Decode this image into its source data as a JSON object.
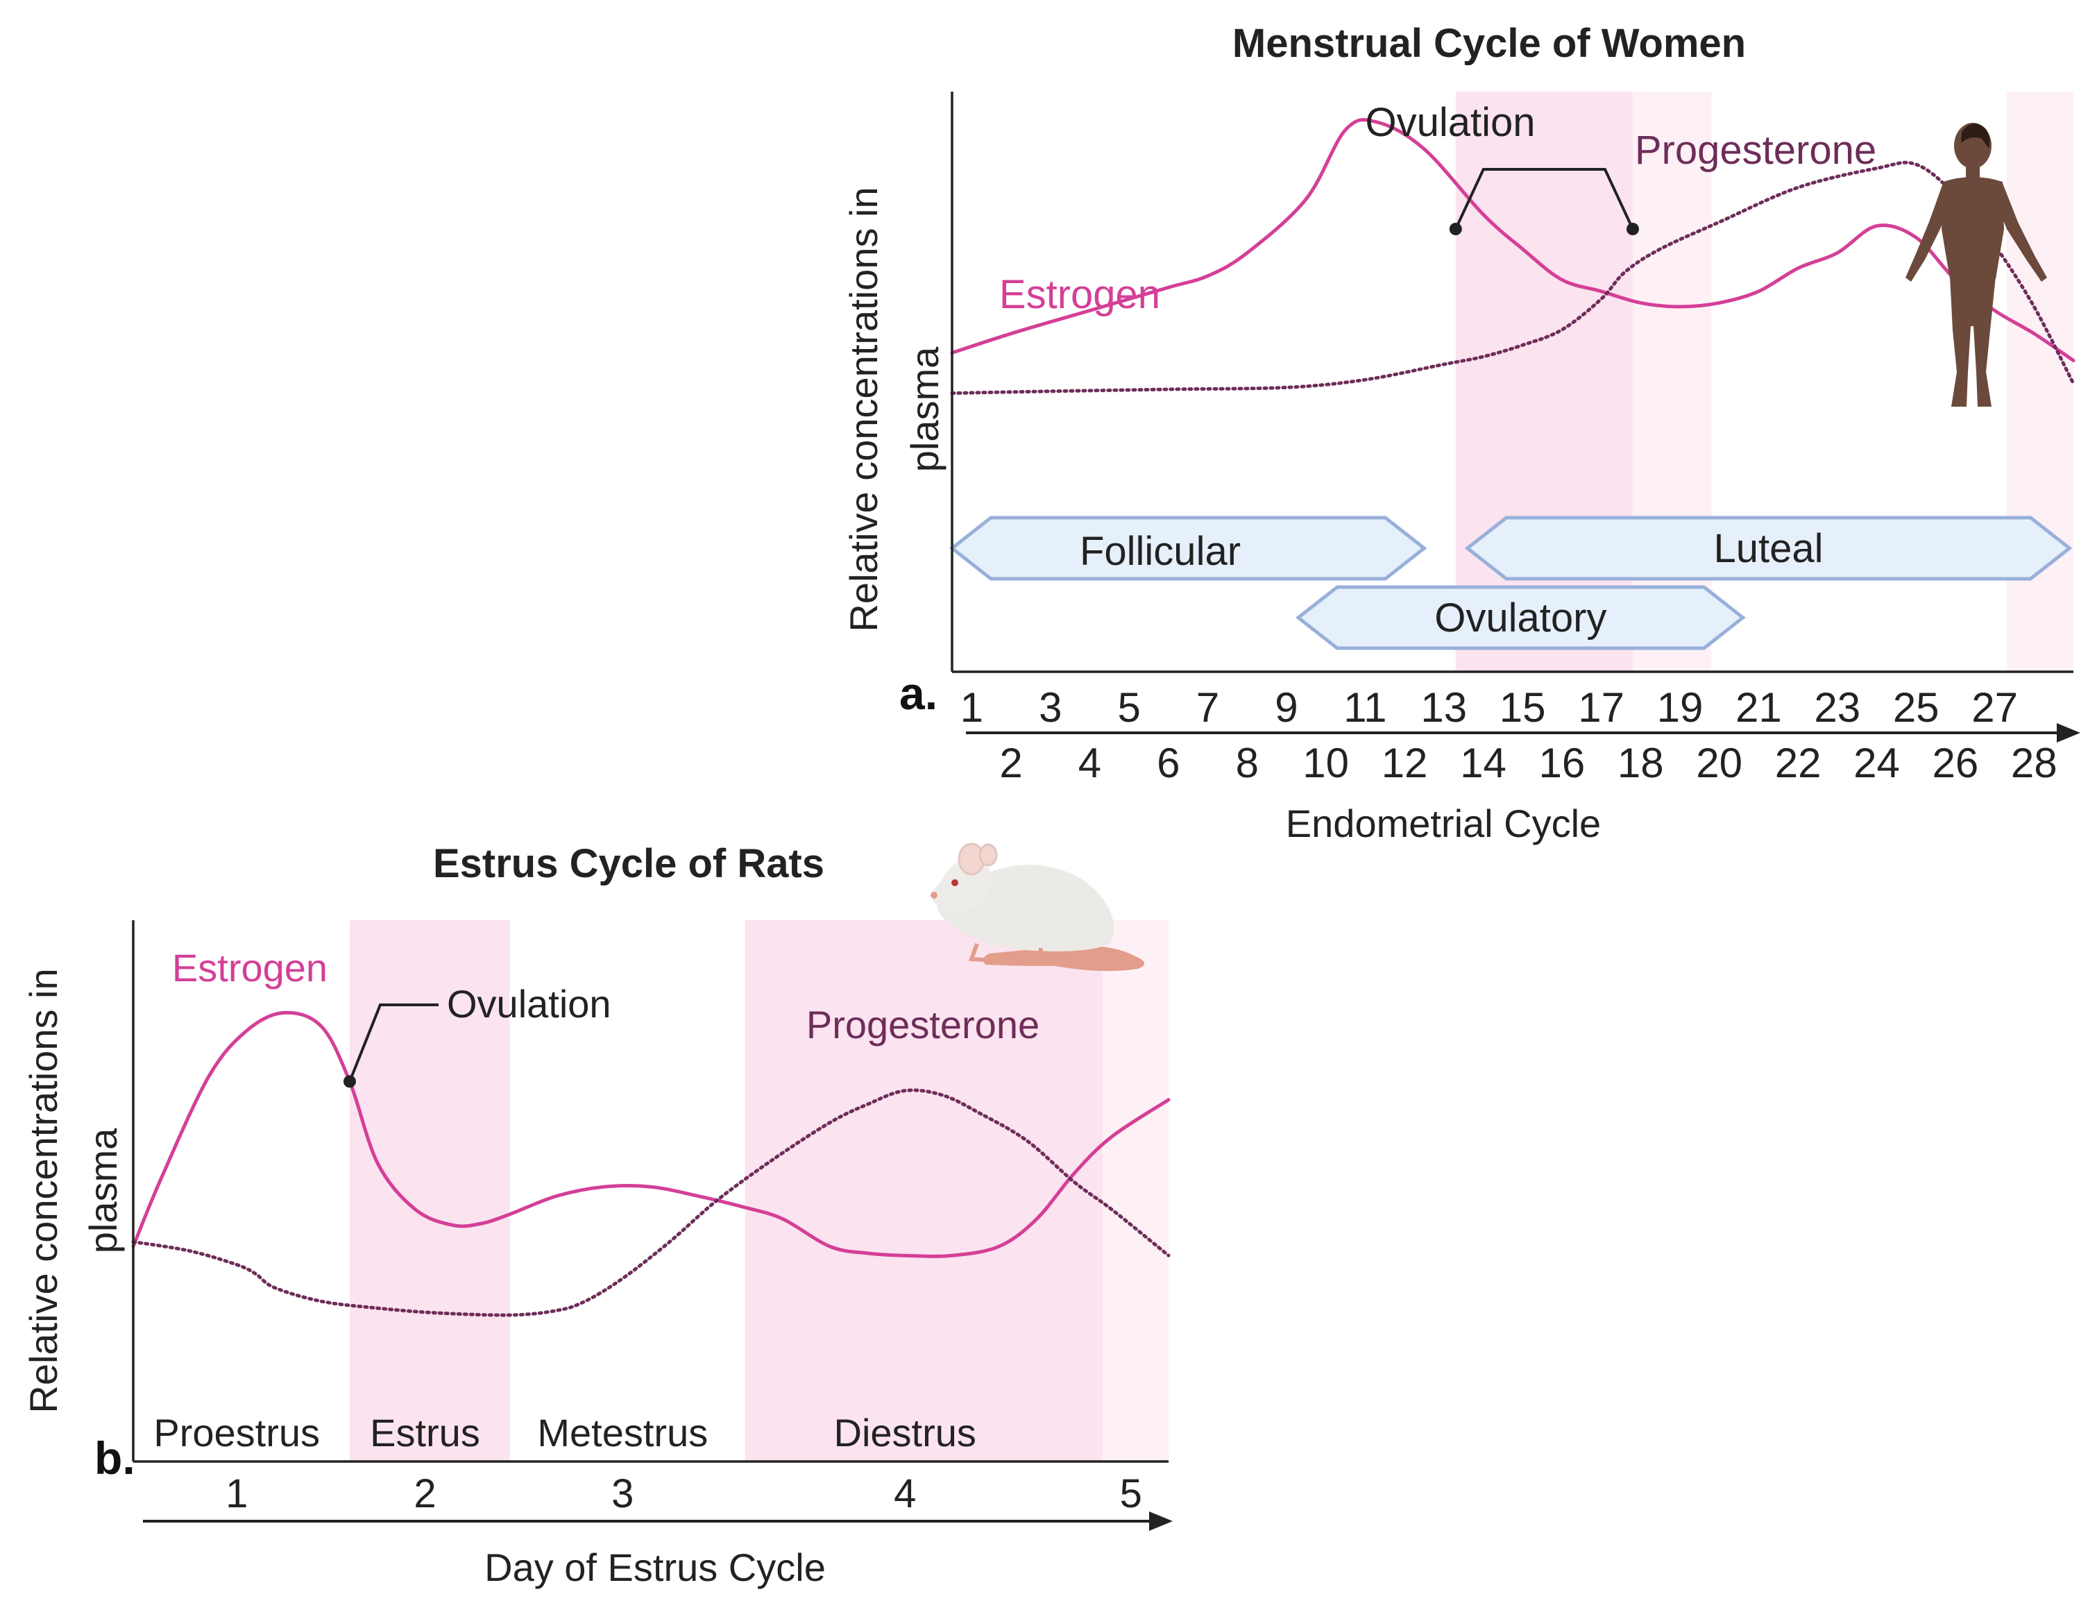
{
  "colors": {
    "estrogen": "#d43f97",
    "progesterone": "#6e2d59",
    "shade": "#fbe3ef",
    "shade_light": "#fdf1f6",
    "phase_fill": "#e6f0fa",
    "phase_stroke": "#98b0da",
    "axis": "#222222",
    "text": "#222222",
    "figure_skin": "#6b4a3c"
  },
  "chart_data": [
    {
      "panel": "a.",
      "type": "line",
      "title": "Menstrual Cycle of Women",
      "xlabel": "Endometrial Cycle",
      "ylabel_line1": "Relative concentrations in",
      "ylabel_line2": "plasma",
      "x_range": [
        0.5,
        29
      ],
      "y_range": [
        0,
        1
      ],
      "ticks_odd": [
        "1",
        "3",
        "5",
        "7",
        "9",
        "11",
        "13",
        "15",
        "17",
        "19",
        "21",
        "23",
        "25",
        "27"
      ],
      "ticks_even": [
        "2",
        "4",
        "6",
        "8",
        "10",
        "12",
        "14",
        "16",
        "18",
        "20",
        "22",
        "24",
        "26",
        "28"
      ],
      "shaded_regions": [
        {
          "start": 13.3,
          "end": 17.8,
          "intensity": "dark"
        },
        {
          "start": 17.8,
          "end": 19.8,
          "intensity": "light"
        },
        {
          "start": 27.3,
          "end": 29.0,
          "intensity": "light"
        }
      ],
      "series": [
        {
          "name": "Estrogen",
          "label": "Estrogen",
          "style": "solid",
          "color_key": "estrogen",
          "x": [
            0.5,
            2,
            4,
            6,
            7,
            8,
            9.5,
            10.5,
            11.3,
            12.5,
            14,
            15,
            16,
            17,
            18,
            19,
            20,
            21,
            22,
            23,
            24,
            25,
            26,
            27,
            28,
            29
          ],
          "y": [
            0.4,
            0.45,
            0.51,
            0.57,
            0.6,
            0.66,
            0.8,
            0.98,
            1.0,
            0.93,
            0.76,
            0.67,
            0.59,
            0.56,
            0.53,
            0.52,
            0.53,
            0.56,
            0.62,
            0.66,
            0.73,
            0.7,
            0.59,
            0.51,
            0.45,
            0.38
          ]
        },
        {
          "name": "Progesterone",
          "label": "Progesterone",
          "style": "dotted",
          "color_key": "progesterone",
          "x": [
            0.5,
            3,
            6,
            9,
            11,
            13,
            14,
            15,
            16,
            17,
            17.6,
            18.5,
            20,
            22,
            24,
            25,
            26,
            27,
            28,
            29
          ],
          "y": [
            0.295,
            0.3,
            0.305,
            0.31,
            0.33,
            0.37,
            0.39,
            0.42,
            0.46,
            0.54,
            0.61,
            0.67,
            0.74,
            0.83,
            0.88,
            0.89,
            0.81,
            0.68,
            0.52,
            0.32
          ]
        }
      ],
      "ovulation": {
        "label": "Ovulation",
        "bracket_start": 13.3,
        "bracket_end": 17.8
      },
      "phases": [
        {
          "label": "Follicular",
          "start": 0.5,
          "end": 12.5,
          "row": 1
        },
        {
          "label": "Ovulatory",
          "start": 9.3,
          "end": 20.6,
          "row": 2
        },
        {
          "label": "Luteal",
          "start": 13.6,
          "end": 28.9,
          "row": 1
        }
      ]
    },
    {
      "panel": "b.",
      "type": "line",
      "title": "Estrus Cycle of Rats",
      "xlabel": "Day of Estrus Cycle",
      "ylabel_line1": "Relative concentrations in",
      "ylabel_line2": "plasma",
      "x_range": [
        0,
        5.5
      ],
      "y_range": [
        0,
        1
      ],
      "ticks": [
        "1",
        "2",
        "3",
        "4",
        "5"
      ],
      "tick_values": [
        0.55,
        1.55,
        2.6,
        4.1,
        5.3
      ],
      "phases": [
        {
          "label": "Proestrus",
          "center": 0.55
        },
        {
          "label": "Estrus",
          "center": 1.55
        },
        {
          "label": "Metestrus",
          "center": 2.6
        },
        {
          "label": "Diestrus",
          "center": 4.1
        }
      ],
      "shaded_regions": [
        {
          "start": 1.15,
          "end": 2.0,
          "intensity": "dark"
        },
        {
          "start": 3.25,
          "end": 5.15,
          "intensity": "dark"
        },
        {
          "start": 5.15,
          "end": 5.5,
          "intensity": "light"
        }
      ],
      "series": [
        {
          "name": "Estrogen",
          "label": "Estrogen",
          "style": "solid",
          "color_key": "estrogen",
          "x": [
            0,
            0.15,
            0.4,
            0.6,
            0.8,
            1.0,
            1.15,
            1.3,
            1.5,
            1.7,
            1.85,
            2.0,
            2.25,
            2.5,
            2.75,
            3.0,
            3.25,
            3.45,
            3.7,
            3.9,
            4.1,
            4.35,
            4.6,
            4.8,
            5.0,
            5.2,
            5.5
          ],
          "y": [
            0.4,
            0.55,
            0.77,
            0.87,
            0.91,
            0.88,
            0.76,
            0.58,
            0.48,
            0.446,
            0.45,
            0.47,
            0.51,
            0.53,
            0.53,
            0.51,
            0.485,
            0.46,
            0.4,
            0.385,
            0.38,
            0.38,
            0.4,
            0.46,
            0.56,
            0.64,
            0.72
          ]
        },
        {
          "name": "Progesterone",
          "label": "Progesterone",
          "style": "dotted",
          "color_key": "progesterone",
          "x": [
            0,
            0.3,
            0.55,
            0.65,
            0.75,
            1.0,
            1.3,
            1.6,
            2.0,
            2.25,
            2.4,
            2.6,
            2.85,
            3.1,
            3.4,
            3.7,
            3.9,
            4.1,
            4.3,
            4.5,
            4.75,
            5.0,
            5.2,
            5.5
          ],
          "y": [
            0.41,
            0.39,
            0.36,
            0.34,
            0.31,
            0.28,
            0.265,
            0.255,
            0.25,
            0.26,
            0.28,
            0.33,
            0.41,
            0.5,
            0.59,
            0.67,
            0.71,
            0.74,
            0.73,
            0.69,
            0.63,
            0.54,
            0.48,
            0.38
          ]
        }
      ],
      "ovulation": {
        "label": "Ovulation",
        "point_x": 1.15
      }
    }
  ]
}
